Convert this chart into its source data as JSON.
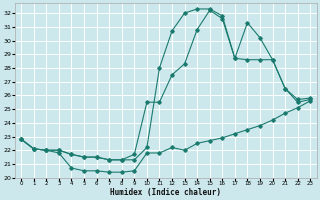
{
  "xlabel": "Humidex (Indice chaleur)",
  "bg_color": "#cce8ec",
  "grid_color": "#ffffff",
  "line_color": "#1a7a6e",
  "xlim": [
    -0.5,
    23.5
  ],
  "ylim": [
    20,
    32.7
  ],
  "xticks": [
    0,
    1,
    2,
    3,
    4,
    5,
    6,
    7,
    8,
    9,
    10,
    11,
    12,
    13,
    14,
    15,
    16,
    17,
    18,
    19,
    20,
    21,
    22,
    23
  ],
  "yticks": [
    20,
    21,
    22,
    23,
    24,
    25,
    26,
    27,
    28,
    29,
    30,
    31,
    32
  ],
  "line1_x": [
    0,
    1,
    2,
    3,
    4,
    5,
    6,
    7,
    8,
    9,
    10,
    11,
    12,
    13,
    14,
    15,
    16,
    17,
    18,
    19,
    20,
    21,
    22,
    23
  ],
  "line1_y": [
    22.8,
    22.1,
    22.0,
    21.8,
    20.7,
    20.5,
    20.5,
    20.4,
    20.4,
    20.5,
    21.8,
    21.8,
    22.2,
    22.0,
    22.5,
    22.7,
    22.9,
    23.2,
    23.5,
    23.8,
    24.2,
    24.7,
    25.1,
    25.6
  ],
  "line2_x": [
    0,
    1,
    2,
    3,
    4,
    5,
    6,
    7,
    8,
    9,
    10,
    11,
    12,
    13,
    14,
    15,
    16,
    17,
    18,
    19,
    20,
    21,
    22,
    23
  ],
  "line2_y": [
    22.8,
    22.1,
    22.0,
    22.0,
    21.7,
    21.5,
    21.5,
    21.3,
    21.3,
    21.7,
    25.5,
    25.5,
    27.5,
    28.3,
    30.8,
    32.2,
    31.6,
    28.7,
    31.3,
    30.2,
    28.6,
    26.5,
    25.7,
    25.8
  ],
  "line3_x": [
    0,
    1,
    2,
    3,
    4,
    5,
    6,
    7,
    8,
    9,
    10,
    11,
    12,
    13,
    14,
    15,
    16,
    17,
    18,
    19,
    20,
    21,
    22,
    23
  ],
  "line3_y": [
    22.8,
    22.1,
    22.0,
    22.0,
    21.7,
    21.5,
    21.5,
    21.3,
    21.3,
    21.3,
    22.2,
    28.0,
    30.7,
    32.0,
    32.3,
    32.3,
    31.8,
    28.7,
    28.6,
    28.6,
    28.6,
    26.5,
    25.5,
    25.7
  ]
}
